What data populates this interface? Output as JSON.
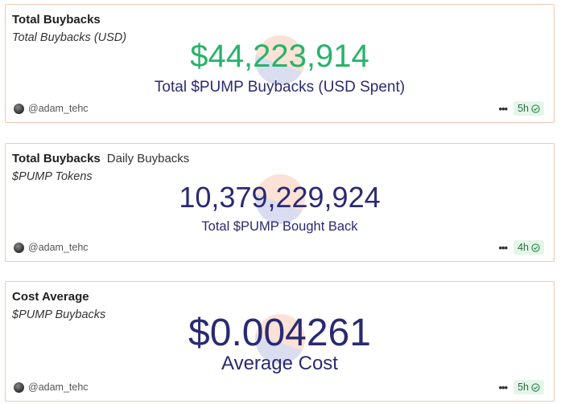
{
  "cards": [
    {
      "title": "Total Buybacks",
      "tab": "",
      "subtitle": "Total Buybacks (USD)",
      "value": "$44,223,914",
      "value_color": "#27b36a",
      "label": "Total $PUMP Buybacks (USD Spent)",
      "author": "@adam_tehc",
      "age": "5h"
    },
    {
      "title": "Total Buybacks",
      "tab": "Daily Buybacks",
      "subtitle": "$PUMP Tokens",
      "value": "10,379,229,924",
      "value_color": "#2a2a72",
      "label": "Total $PUMP Bought Back",
      "author": "@adam_tehc",
      "age": "4h"
    },
    {
      "title": "Cost Average",
      "tab": "",
      "subtitle": "$PUMP Buybacks",
      "value": "$0.004261",
      "value_color": "#2a2a72",
      "label": "Average Cost",
      "author": "@adam_tehc",
      "age": "5h"
    }
  ],
  "icons": {
    "more": "more-horizontal-icon",
    "check": "check-circle-icon",
    "avatar": "user-avatar"
  },
  "colors": {
    "border": "#f3c6b8",
    "badge_bg": "#e4f5ea",
    "badge_fg": "#2f6b45"
  }
}
